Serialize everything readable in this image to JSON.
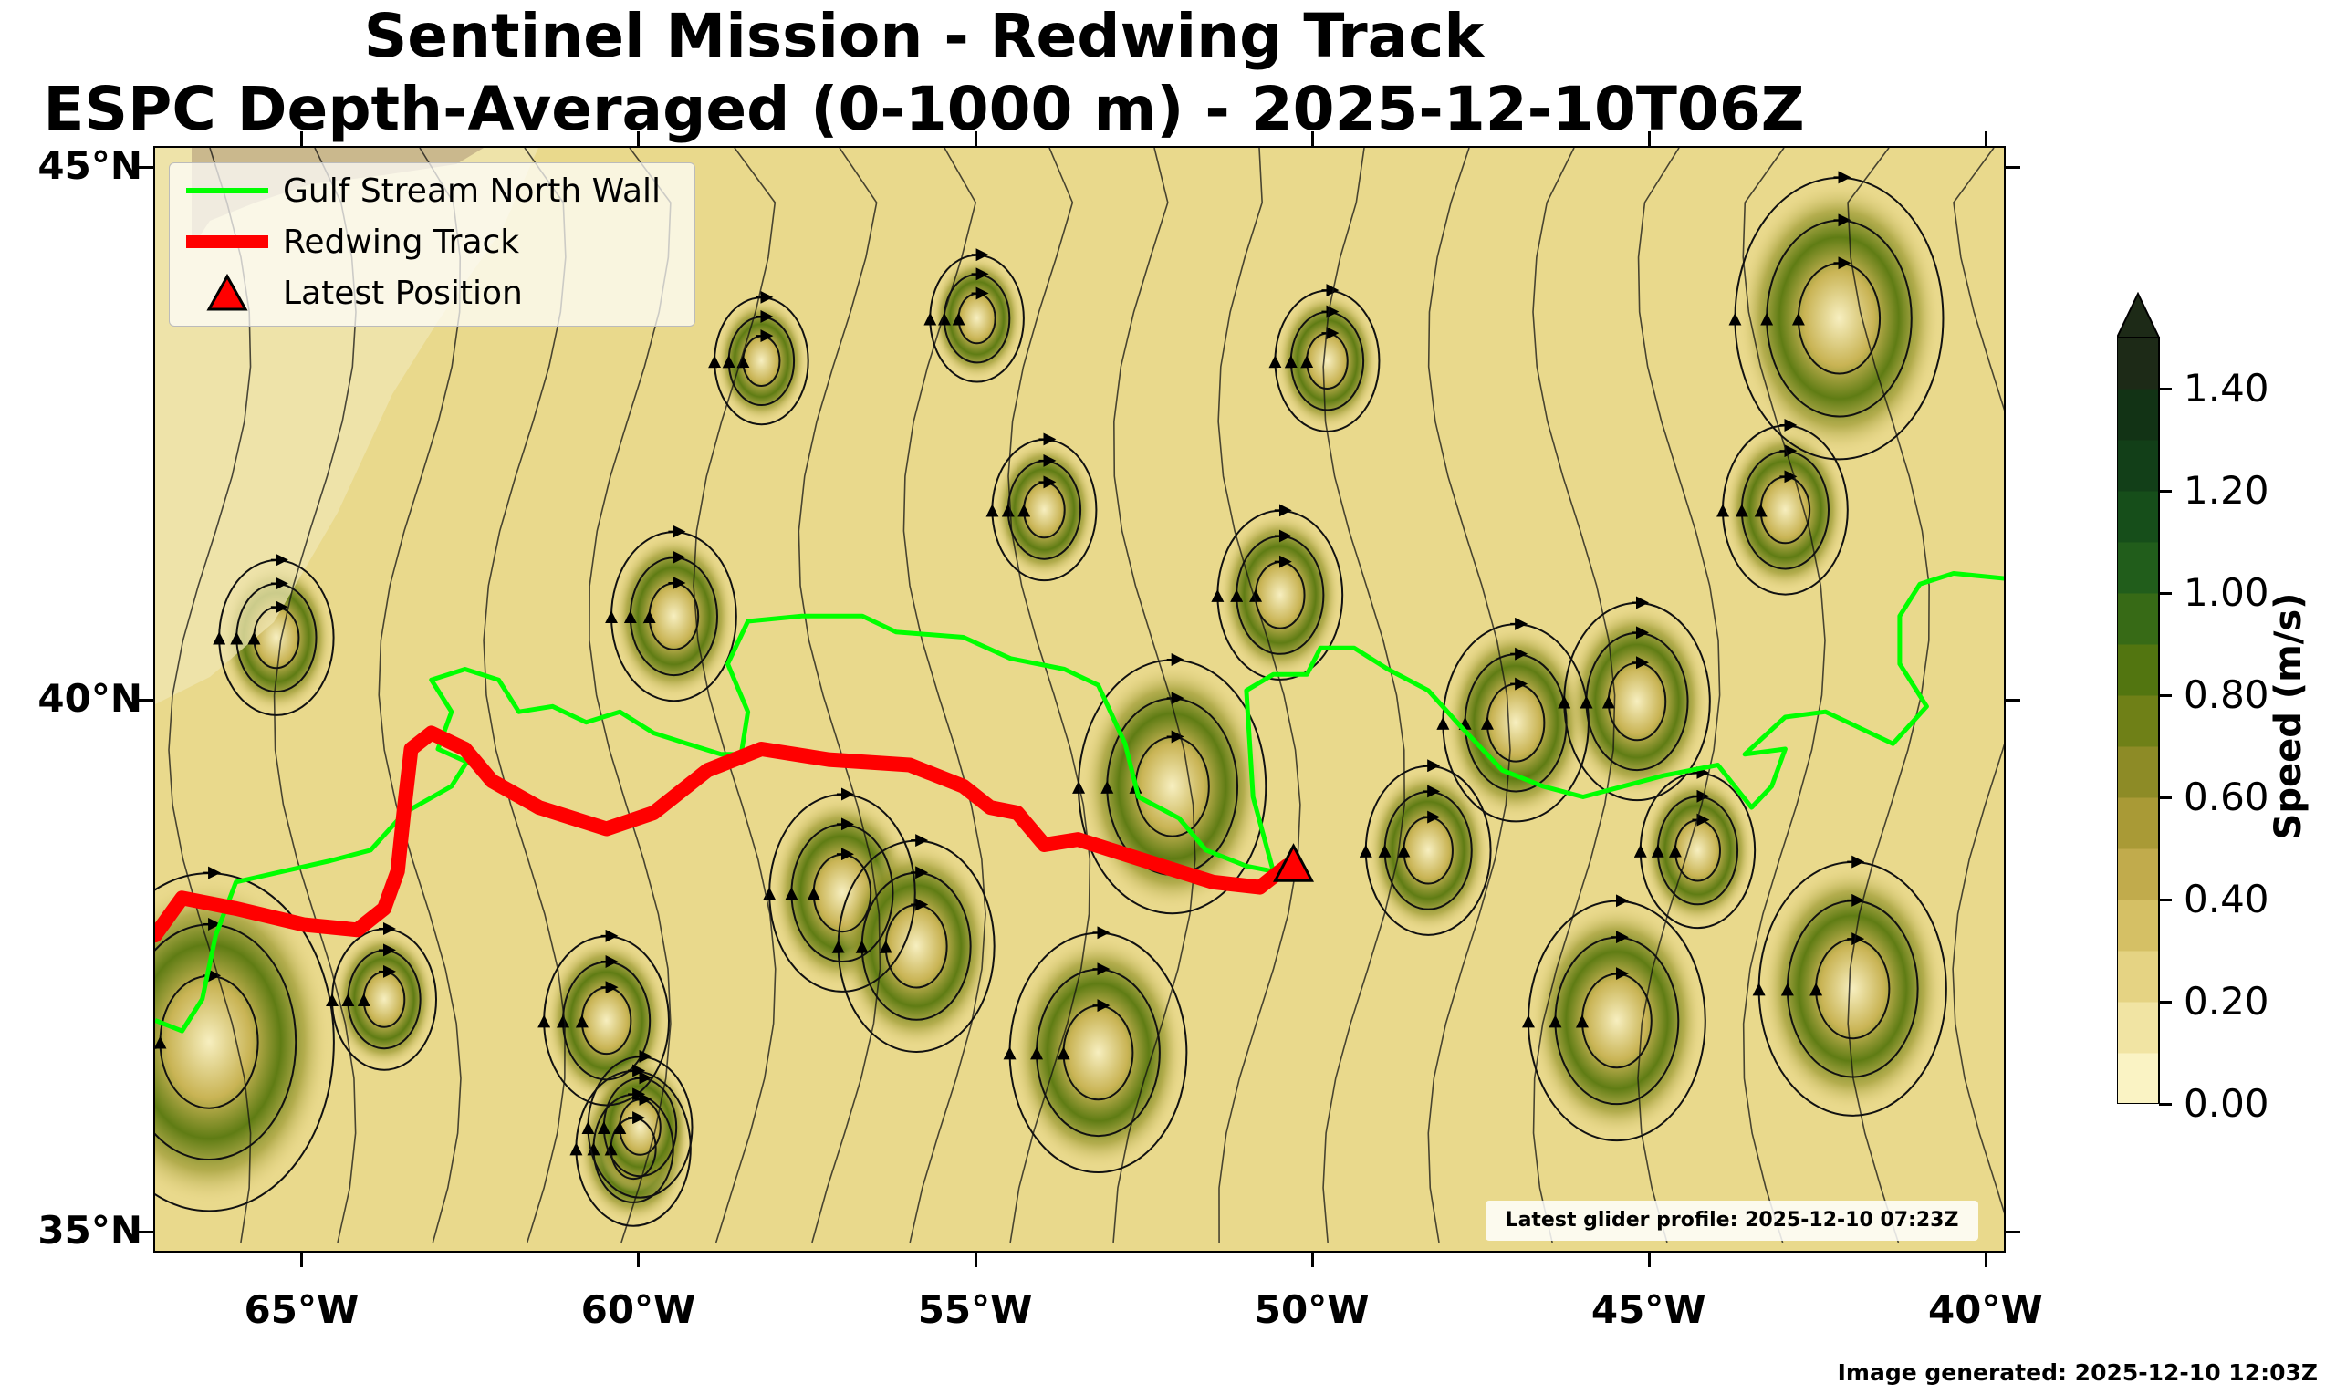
{
  "title": {
    "line1": "Sentinel Mission - Redwing Track",
    "line2": "ESPC Depth-Averaged (0-1000 m) - 2025-12-10T06Z"
  },
  "map": {
    "lon_range": [
      -67.2,
      -39.7
    ],
    "lat_range": [
      34.8,
      45.2
    ],
    "lat_ticks": [
      {
        "value": 45,
        "label": "45°N"
      },
      {
        "value": 40,
        "label": "40°N"
      },
      {
        "value": 35,
        "label": "35°N"
      }
    ],
    "lon_ticks": [
      {
        "value": -65,
        "label": "65°W"
      },
      {
        "value": -60,
        "label": "60°W"
      },
      {
        "value": -55,
        "label": "55°W"
      },
      {
        "value": -50,
        "label": "50°W"
      },
      {
        "value": -45,
        "label": "45°W"
      },
      {
        "value": -40,
        "label": "40°W"
      }
    ],
    "redwing_track": [
      [
        -67.2,
        37.8
      ],
      [
        -66.8,
        38.15
      ],
      [
        -66.0,
        38.05
      ],
      [
        -65.0,
        37.9
      ],
      [
        -64.2,
        37.85
      ],
      [
        -63.8,
        38.05
      ],
      [
        -63.6,
        38.4
      ],
      [
        -63.5,
        39.0
      ],
      [
        -63.4,
        39.55
      ],
      [
        -63.1,
        39.7
      ],
      [
        -62.6,
        39.55
      ],
      [
        -62.2,
        39.25
      ],
      [
        -61.5,
        39.0
      ],
      [
        -60.5,
        38.8
      ],
      [
        -59.8,
        38.95
      ],
      [
        -59.0,
        39.35
      ],
      [
        -58.2,
        39.55
      ],
      [
        -57.2,
        39.45
      ],
      [
        -56.0,
        39.4
      ],
      [
        -55.2,
        39.2
      ],
      [
        -54.8,
        39.0
      ],
      [
        -54.4,
        38.95
      ],
      [
        -54.0,
        38.65
      ],
      [
        -53.5,
        38.7
      ],
      [
        -52.5,
        38.5
      ],
      [
        -51.5,
        38.3
      ],
      [
        -50.8,
        38.25
      ],
      [
        -50.4,
        38.45
      ]
    ],
    "latest_position": [
      -50.3,
      38.45
    ],
    "north_wall": [
      [
        -67.2,
        37.0
      ],
      [
        -66.8,
        36.9
      ],
      [
        -66.5,
        37.2
      ],
      [
        -66.3,
        37.8
      ],
      [
        -66.0,
        38.3
      ],
      [
        -65.3,
        38.4
      ],
      [
        -64.6,
        38.5
      ],
      [
        -64.0,
        38.6
      ],
      [
        -63.5,
        38.95
      ],
      [
        -62.8,
        39.2
      ],
      [
        -62.5,
        39.5
      ],
      [
        -62.3,
        39.35
      ],
      [
        -63.0,
        39.55
      ],
      [
        -62.8,
        39.9
      ],
      [
        -63.1,
        40.2
      ],
      [
        -62.6,
        40.3
      ],
      [
        -62.1,
        40.2
      ],
      [
        -61.8,
        39.9
      ],
      [
        -61.3,
        39.95
      ],
      [
        -60.8,
        39.8
      ],
      [
        -60.3,
        39.9
      ],
      [
        -59.8,
        39.7
      ],
      [
        -59.3,
        39.6
      ],
      [
        -58.8,
        39.5
      ],
      [
        -58.5,
        39.5
      ],
      [
        -58.4,
        39.9
      ],
      [
        -58.7,
        40.35
      ],
      [
        -58.4,
        40.75
      ],
      [
        -57.6,
        40.8
      ],
      [
        -56.7,
        40.8
      ],
      [
        -56.2,
        40.65
      ],
      [
        -55.2,
        40.6
      ],
      [
        -54.5,
        40.4
      ],
      [
        -53.7,
        40.3
      ],
      [
        -53.2,
        40.15
      ],
      [
        -52.8,
        39.6
      ],
      [
        -52.6,
        39.1
      ],
      [
        -52.0,
        38.9
      ],
      [
        -51.6,
        38.6
      ],
      [
        -51.0,
        38.45
      ],
      [
        -50.6,
        38.4
      ],
      [
        -50.9,
        39.1
      ],
      [
        -51.0,
        40.1
      ],
      [
        -50.6,
        40.25
      ],
      [
        -50.1,
        40.25
      ],
      [
        -49.9,
        40.5
      ],
      [
        -49.4,
        40.5
      ],
      [
        -48.9,
        40.3
      ],
      [
        -48.3,
        40.1
      ],
      [
        -47.8,
        39.75
      ],
      [
        -47.2,
        39.35
      ],
      [
        -46.6,
        39.2
      ],
      [
        -46.0,
        39.1
      ],
      [
        -45.4,
        39.2
      ],
      [
        -44.8,
        39.3
      ],
      [
        -44.0,
        39.4
      ],
      [
        -43.5,
        39.0
      ],
      [
        -43.2,
        39.2
      ],
      [
        -43.0,
        39.55
      ],
      [
        -43.6,
        39.5
      ],
      [
        -43.0,
        39.85
      ],
      [
        -42.4,
        39.9
      ],
      [
        -41.9,
        39.75
      ],
      [
        -41.4,
        39.6
      ],
      [
        -40.9,
        39.95
      ],
      [
        -41.3,
        40.35
      ],
      [
        -41.3,
        40.8
      ],
      [
        -41.0,
        41.1
      ],
      [
        -40.5,
        41.2
      ],
      [
        -39.7,
        41.15
      ]
    ],
    "legend": [
      {
        "label": "Gulf Stream North Wall",
        "color": "#00ff00"
      },
      {
        "label": "Redwing Track",
        "color": "#ff0000"
      },
      {
        "label": "Latest Position",
        "color": "#ff0000"
      }
    ],
    "glider_profile": "Latest glider profile: 2025-12-10 07:23Z",
    "eddies": [
      [
        -66.4,
        36.8,
        1.2
      ],
      [
        -65.4,
        40.6,
        0.55
      ],
      [
        -63.8,
        37.2,
        0.5
      ],
      [
        -60.5,
        37.0,
        0.6
      ],
      [
        -60.1,
        35.8,
        0.55
      ],
      [
        -59.5,
        40.8,
        0.6
      ],
      [
        -57.0,
        38.2,
        0.7
      ],
      [
        -55.9,
        37.7,
        0.75
      ],
      [
        -54.0,
        41.8,
        0.5
      ],
      [
        -53.2,
        36.7,
        0.85
      ],
      [
        -52.1,
        39.2,
        0.9
      ],
      [
        -50.5,
        41.0,
        0.6
      ],
      [
        -48.3,
        38.6,
        0.6
      ],
      [
        -47.0,
        39.8,
        0.7
      ],
      [
        -45.5,
        37.0,
        0.85
      ],
      [
        -44.3,
        38.6,
        0.55
      ],
      [
        -43.0,
        41.8,
        0.6
      ],
      [
        -42.2,
        43.6,
        1.0
      ],
      [
        -42.0,
        37.3,
        0.9
      ],
      [
        -45.2,
        40.0,
        0.7
      ],
      [
        -58.2,
        43.2,
        0.45
      ],
      [
        -55.0,
        43.6,
        0.45
      ],
      [
        -49.8,
        43.2,
        0.5
      ],
      [
        -60.0,
        36.0,
        0.5
      ]
    ]
  },
  "colorbar": {
    "label": "Speed (m/s)",
    "min": 0,
    "max": 1.5,
    "extend": "max",
    "ticks": [
      {
        "value": 0.0,
        "label": "0.00"
      },
      {
        "value": 0.2,
        "label": "0.20"
      },
      {
        "value": 0.4,
        "label": "0.40"
      },
      {
        "value": 0.6,
        "label": "0.60"
      },
      {
        "value": 0.8,
        "label": "0.80"
      },
      {
        "value": 1.0,
        "label": "1.00"
      },
      {
        "value": 1.2,
        "label": "1.20"
      },
      {
        "value": 1.4,
        "label": "1.40"
      }
    ],
    "colors": [
      "#faf3c4",
      "#f1e4a3",
      "#e5d383",
      "#d5c065",
      "#c1ab4c",
      "#a99a36",
      "#8d8b26",
      "#6f8017",
      "#527510",
      "#376a16",
      "#215d1b",
      "#164e1a",
      "#123f18",
      "#123315",
      "#1d2a17"
    ]
  },
  "generated": "Image generated: 2025-12-10 12:03Z"
}
